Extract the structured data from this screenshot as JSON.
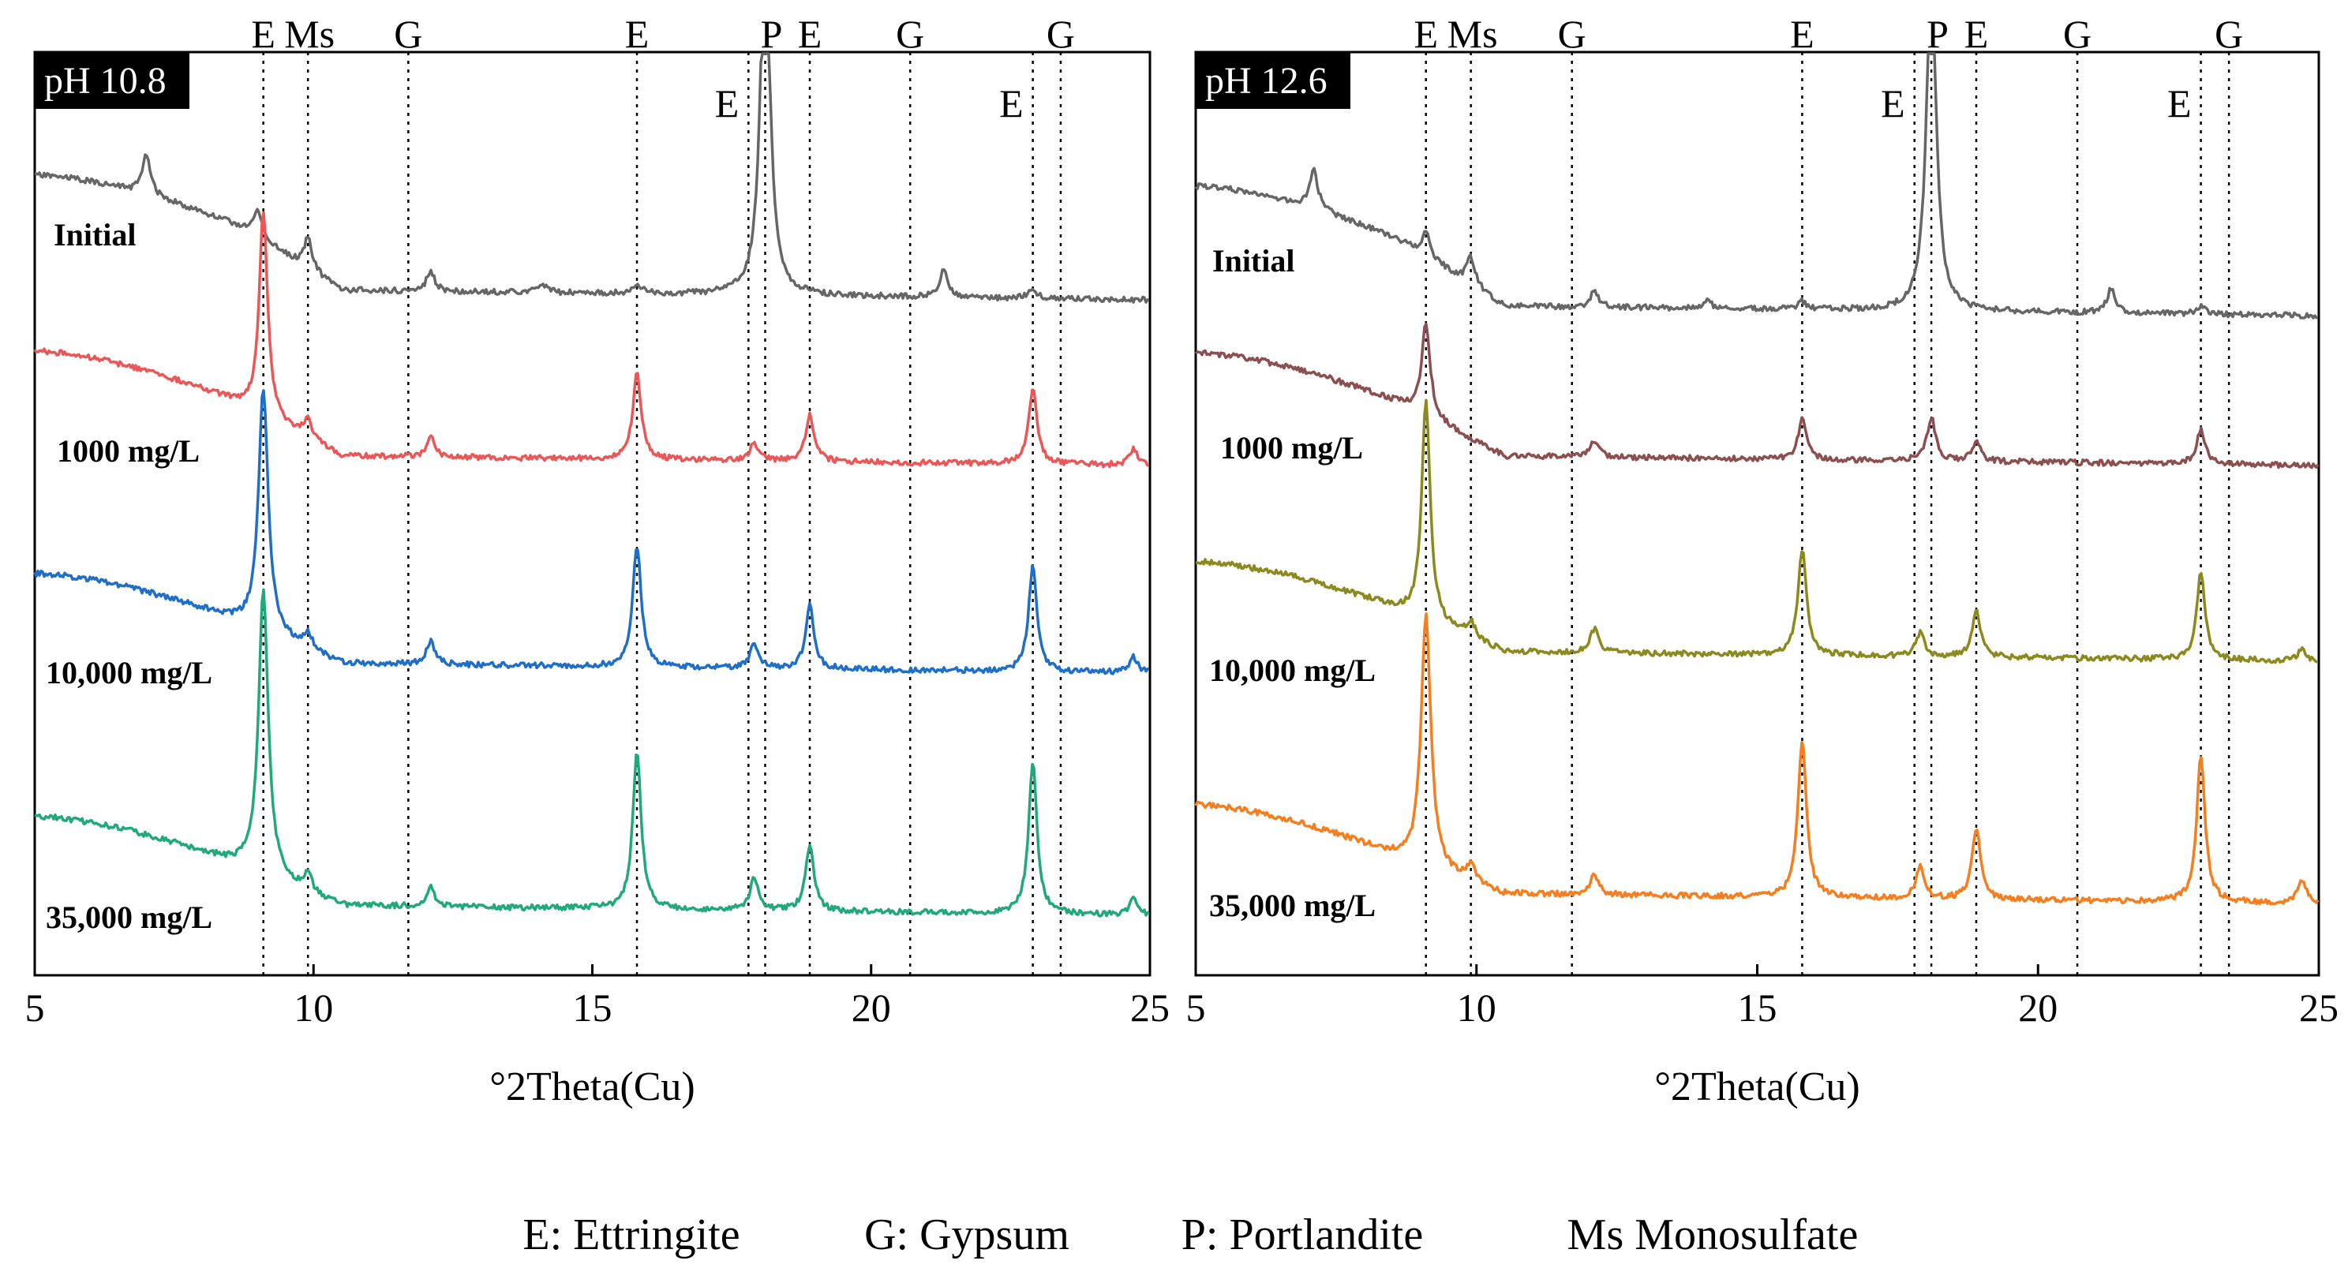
{
  "legend": [
    {
      "code": "E",
      "text": "E: Ettringite"
    },
    {
      "code": "G",
      "text": "G: Gypsum"
    },
    {
      "code": "P",
      "text": "P: Portlandite"
    },
    {
      "code": "Ms",
      "text": "Ms Monosulfate"
    }
  ],
  "chart_data": [
    {
      "type": "line",
      "title": "pH 10.8",
      "xlabel": "°2Theta(Cu)",
      "ylabel": "",
      "xlim": [
        5,
        25
      ],
      "xticks": [
        "5",
        "10",
        "15",
        "20",
        "25"
      ],
      "reference_lines": [
        {
          "label": "E",
          "x": 9.1
        },
        {
          "label": "Ms",
          "x": 9.9
        },
        {
          "label": "G",
          "x": 11.7
        },
        {
          "label": "E",
          "x": 15.8
        },
        {
          "label": "E",
          "x": 17.8
        },
        {
          "label": "P",
          "x": 18.1
        },
        {
          "label": "E",
          "x": 18.9
        },
        {
          "label": "G",
          "x": 20.7
        },
        {
          "label": "E",
          "x": 22.9
        },
        {
          "label": "G",
          "x": 23.4
        }
      ],
      "series": [
        {
          "name": "Initial",
          "color": "#666666",
          "peaks": [
            [
              7.0,
              0.5
            ],
            [
              9.0,
              0.35
            ],
            [
              9.9,
              0.4
            ],
            [
              12.1,
              0.25
            ],
            [
              14.1,
              0.12
            ],
            [
              15.8,
              0.12
            ],
            [
              18.1,
              4.6
            ],
            [
              21.3,
              0.35
            ],
            [
              22.9,
              0.12
            ]
          ]
        },
        {
          "name": "1000 mg/L",
          "color": "#EB5757",
          "peaks": [
            [
              9.1,
              2.6
            ],
            [
              9.9,
              0.25
            ],
            [
              12.1,
              0.25
            ],
            [
              15.8,
              1.1
            ],
            [
              17.9,
              0.22
            ],
            [
              18.9,
              0.6
            ],
            [
              22.9,
              0.95
            ],
            [
              24.7,
              0.2
            ]
          ]
        },
        {
          "name": "10,000 mg/L",
          "color": "#1F6FC8",
          "peaks": [
            [
              9.1,
              3.1
            ],
            [
              9.9,
              0.2
            ],
            [
              12.1,
              0.3
            ],
            [
              15.8,
              1.55
            ],
            [
              17.9,
              0.3
            ],
            [
              18.9,
              0.8
            ],
            [
              22.9,
              1.35
            ],
            [
              24.7,
              0.2
            ]
          ]
        },
        {
          "name": "35,000 mg/L",
          "color": "#21A97A",
          "peaks": [
            [
              9.1,
              3.6
            ],
            [
              9.9,
              0.2
            ],
            [
              12.1,
              0.25
            ],
            [
              15.8,
              2.0
            ],
            [
              17.9,
              0.4
            ],
            [
              18.9,
              0.85
            ],
            [
              22.9,
              1.9
            ],
            [
              24.7,
              0.2
            ]
          ]
        }
      ]
    },
    {
      "type": "line",
      "title": "pH 12.6",
      "xlabel": "°2Theta(Cu)",
      "ylabel": "",
      "xlim": [
        5,
        25
      ],
      "xticks": [
        "5",
        "10",
        "15",
        "20",
        "25"
      ],
      "reference_lines": [
        {
          "label": "E",
          "x": 9.1
        },
        {
          "label": "Ms",
          "x": 9.9
        },
        {
          "label": "G",
          "x": 11.7
        },
        {
          "label": "E",
          "x": 15.8
        },
        {
          "label": "E",
          "x": 17.8
        },
        {
          "label": "P",
          "x": 18.1
        },
        {
          "label": "E",
          "x": 18.9
        },
        {
          "label": "G",
          "x": 20.7
        },
        {
          "label": "E",
          "x": 22.9
        },
        {
          "label": "G",
          "x": 23.4
        }
      ],
      "series": [
        {
          "name": "Initial",
          "color": "#666666",
          "peaks": [
            [
              7.1,
              0.5
            ],
            [
              9.1,
              0.3
            ],
            [
              9.9,
              0.35
            ],
            [
              12.1,
              0.2
            ],
            [
              14.1,
              0.1
            ],
            [
              15.8,
              0.1
            ],
            [
              18.1,
              4.4
            ],
            [
              21.3,
              0.3
            ],
            [
              22.9,
              0.1
            ]
          ]
        },
        {
          "name": "1000 mg/L",
          "color": "#8C4F4F",
          "peaks": [
            [
              9.1,
              1.2
            ],
            [
              12.1,
              0.2
            ],
            [
              15.8,
              0.5
            ],
            [
              18.1,
              0.55
            ],
            [
              18.9,
              0.25
            ],
            [
              22.9,
              0.45
            ]
          ]
        },
        {
          "name": "10,000 mg/L",
          "color": "#8C8A1E",
          "peaks": [
            [
              9.1,
              2.8
            ],
            [
              9.9,
              0.2
            ],
            [
              12.1,
              0.3
            ],
            [
              15.8,
              1.35
            ],
            [
              17.9,
              0.3
            ],
            [
              18.9,
              0.6
            ],
            [
              22.9,
              1.1
            ],
            [
              24.7,
              0.15
            ]
          ]
        },
        {
          "name": "35,000 mg/L",
          "color": "#F77E1F",
          "peaks": [
            [
              9.1,
              3.2
            ],
            [
              9.9,
              0.2
            ],
            [
              12.1,
              0.25
            ],
            [
              15.8,
              2.0
            ],
            [
              17.9,
              0.4
            ],
            [
              18.9,
              0.9
            ],
            [
              22.9,
              1.85
            ],
            [
              24.7,
              0.3
            ]
          ]
        }
      ]
    }
  ]
}
